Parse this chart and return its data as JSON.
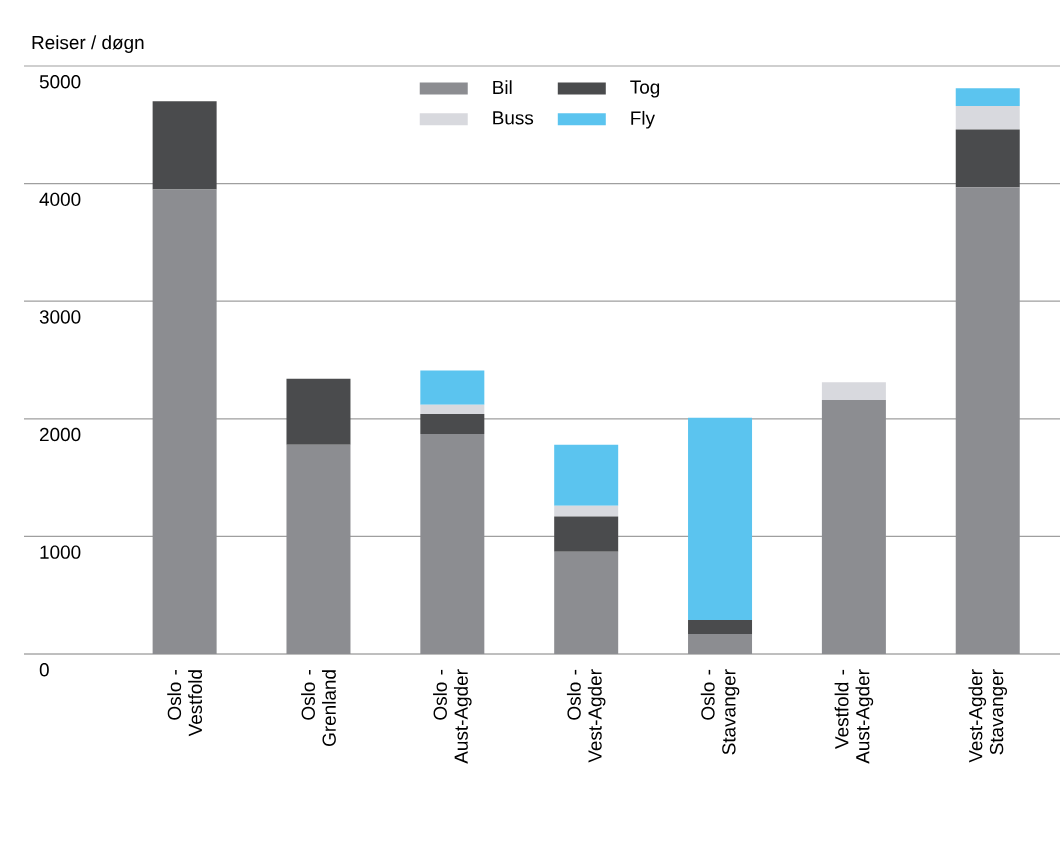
{
  "chart_data": {
    "type": "bar",
    "stacked": true,
    "ylabel": "Reiser / døgn",
    "categories": [
      "Oslo - Vestfold",
      "Oslo - Grenland",
      "Oslo - Aust-Agder",
      "Oslo - Vest-Agder",
      "Oslo - Stavanger",
      "Vestfold - Aust-Agder",
      "Vest-Agder Stavanger"
    ],
    "series": [
      {
        "name": "Bil",
        "color": "#8c8d91",
        "values": [
          3950,
          1780,
          1870,
          870,
          170,
          2160,
          3970
        ]
      },
      {
        "name": "Tog",
        "color": "#4a4b4d",
        "values": [
          750,
          560,
          170,
          300,
          120,
          0,
          490
        ]
      },
      {
        "name": "Buss",
        "color": "#d8d9de",
        "values": [
          0,
          0,
          80,
          90,
          0,
          150,
          200
        ]
      },
      {
        "name": "Fly",
        "color": "#5bc4ef",
        "values": [
          0,
          0,
          290,
          520,
          1720,
          0,
          150
        ]
      }
    ],
    "ylim": [
      0,
      5000
    ],
    "yticks": [
      0,
      1000,
      2000,
      3000,
      4000,
      5000
    ],
    "grid": "y",
    "legend": "top"
  }
}
